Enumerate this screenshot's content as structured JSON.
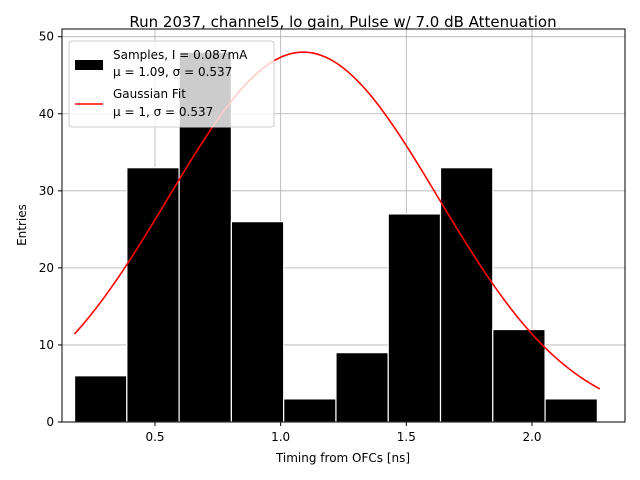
{
  "chart_data": {
    "type": "bar",
    "title": "Run 2037, channel5, lo gain, Pulse w/ 7.0 dB Attenuation",
    "xlabel": "Timing from OFCs [ns]",
    "ylabel": "Entries",
    "xlim": [
      0.13,
      2.37
    ],
    "ylim": [
      0,
      51
    ],
    "grid": true,
    "x_ticks": [
      0.5,
      1.0,
      1.5,
      2.0
    ],
    "x_tick_labels": [
      "0.5",
      "1.0",
      "1.5",
      "2.0"
    ],
    "y_ticks": [
      0,
      10,
      20,
      30,
      40,
      50
    ],
    "y_tick_labels": [
      "0",
      "10",
      "20",
      "30",
      "40",
      "50"
    ],
    "histogram": {
      "bin_edges": [
        0.18,
        0.388,
        0.596,
        0.804,
        1.012,
        1.22,
        1.428,
        1.636,
        1.844,
        2.052,
        2.26
      ],
      "counts": [
        6,
        33,
        48,
        26,
        3,
        9,
        27,
        33,
        12,
        3
      ],
      "color": "#000000",
      "edge_color": "#ffffff"
    },
    "fit": {
      "type": "gaussian",
      "amplitude": 48,
      "mu": 1.09,
      "sigma": 0.537,
      "x_range": [
        0.18,
        2.27
      ],
      "color": "#ff0000"
    },
    "legend": {
      "position": "top-left",
      "entries": [
        {
          "label_line1": "Samples, I = 0.087mA",
          "label_line2": "μ = 1.09, σ = 0.537",
          "marker": "box",
          "color": "#000000"
        },
        {
          "label_line1": "Gaussian Fit",
          "label_line2": "μ = 1, σ = 0.537",
          "marker": "line",
          "color": "#ff0000"
        }
      ]
    }
  }
}
